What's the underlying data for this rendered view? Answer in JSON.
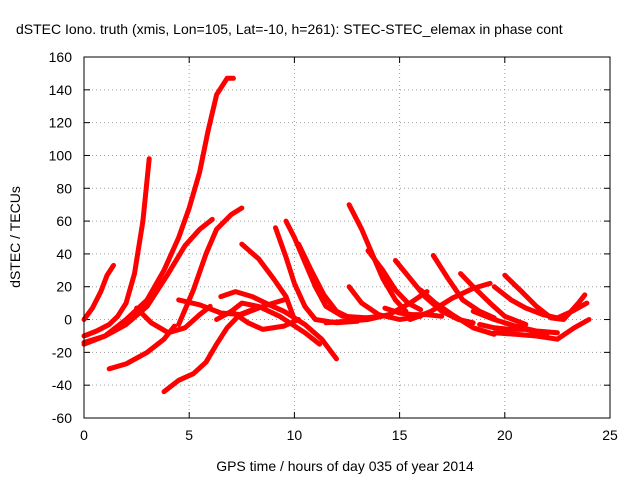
{
  "chart_data": {
    "type": "line",
    "title": "dSTEC Iono. truth (xmis, Lon=105, Lat=-10, h=261): STEC-STEC_elemax in phase cont",
    "xlabel": "GPS time / hours of day 035 of year 2014",
    "ylabel": "dSTEC  / TECUs",
    "xlim": [
      0,
      25
    ],
    "ylim": [
      -60,
      160
    ],
    "xticks": [
      0,
      5,
      10,
      15,
      20,
      25
    ],
    "yticks": [
      -60,
      -40,
      -20,
      0,
      20,
      40,
      60,
      80,
      100,
      120,
      140,
      160
    ],
    "grid": true,
    "color": "#ff0000",
    "series": [
      {
        "points": [
          [
            0,
            0
          ],
          [
            0.4,
            7
          ],
          [
            0.8,
            17
          ],
          [
            1.1,
            27
          ],
          [
            1.4,
            33
          ]
        ]
      },
      {
        "points": [
          [
            0,
            -10
          ],
          [
            0.6,
            -7
          ],
          [
            1.2,
            -3
          ],
          [
            1.6,
            2
          ],
          [
            2,
            10
          ],
          [
            2.4,
            28
          ],
          [
            2.8,
            60
          ],
          [
            3.1,
            98
          ]
        ]
      },
      {
        "points": [
          [
            0,
            -15
          ],
          [
            1,
            -10
          ],
          [
            2,
            0
          ],
          [
            3,
            12
          ],
          [
            3.8,
            30
          ],
          [
            4.5,
            50
          ],
          [
            5,
            68
          ],
          [
            5.5,
            90
          ],
          [
            5.9,
            115
          ],
          [
            6.3,
            137
          ],
          [
            6.8,
            147
          ],
          [
            7.1,
            147
          ]
        ]
      },
      {
        "points": [
          [
            0,
            -14
          ],
          [
            1,
            -10
          ],
          [
            2,
            -3
          ],
          [
            3,
            8
          ],
          [
            4,
            28
          ],
          [
            4.8,
            45
          ],
          [
            5.5,
            55
          ],
          [
            6.1,
            61
          ]
        ]
      },
      {
        "points": [
          [
            1.2,
            -30
          ],
          [
            2,
            -27
          ],
          [
            3,
            -20
          ],
          [
            3.8,
            -12
          ],
          [
            4.3,
            -4
          ]
        ]
      },
      {
        "points": [
          [
            2.5,
            7
          ],
          [
            3.2,
            -2
          ],
          [
            4,
            -8
          ],
          [
            4.8,
            -5
          ],
          [
            5.5,
            3
          ],
          [
            6,
            8
          ]
        ]
      },
      {
        "points": [
          [
            4.5,
            -3
          ],
          [
            5.2,
            18
          ],
          [
            5.8,
            40
          ],
          [
            6.3,
            55
          ],
          [
            7,
            64
          ],
          [
            7.5,
            68
          ]
        ]
      },
      {
        "points": [
          [
            3.8,
            -44
          ],
          [
            4.5,
            -37
          ],
          [
            5.2,
            -33
          ],
          [
            5.8,
            -26
          ],
          [
            6.3,
            -15
          ],
          [
            6.8,
            -5
          ],
          [
            7.4,
            3
          ],
          [
            8,
            6
          ]
        ]
      },
      {
        "points": [
          [
            4.5,
            12
          ],
          [
            5.5,
            9
          ],
          [
            6.5,
            4
          ],
          [
            7.5,
            3
          ],
          [
            8.5,
            8
          ],
          [
            9.5,
            12
          ]
        ]
      },
      {
        "points": [
          [
            6.3,
            0
          ],
          [
            7,
            5
          ],
          [
            7.5,
            10
          ],
          [
            8.3,
            8
          ],
          [
            9.3,
            2
          ],
          [
            10.5,
            -8
          ],
          [
            11.2,
            -15
          ]
        ]
      },
      {
        "points": [
          [
            6.5,
            14
          ],
          [
            7.2,
            17
          ],
          [
            8,
            14
          ],
          [
            8.8,
            9
          ],
          [
            9.5,
            5
          ],
          [
            10.5,
            -3
          ],
          [
            11.3,
            -12
          ],
          [
            12,
            -24
          ]
        ]
      },
      {
        "points": [
          [
            7.5,
            46
          ],
          [
            8.3,
            37
          ],
          [
            9,
            25
          ],
          [
            9.6,
            14
          ],
          [
            10,
            0
          ]
        ]
      },
      {
        "points": [
          [
            7,
            5
          ],
          [
            7.8,
            -2
          ],
          [
            8.5,
            -6
          ],
          [
            9.5,
            -4
          ],
          [
            10.2,
            0
          ]
        ]
      },
      {
        "points": [
          [
            9.1,
            56
          ],
          [
            9.6,
            38
          ],
          [
            10,
            22
          ],
          [
            10.5,
            8
          ],
          [
            11,
            0
          ],
          [
            12,
            -2
          ],
          [
            13,
            -1
          ]
        ]
      },
      {
        "points": [
          [
            9.6,
            60
          ],
          [
            10,
            50
          ],
          [
            10.5,
            35
          ],
          [
            11,
            20
          ],
          [
            11.5,
            8
          ],
          [
            12.3,
            2
          ],
          [
            13.5,
            1
          ]
        ]
      },
      {
        "points": [
          [
            10.2,
            46
          ],
          [
            10.8,
            30
          ],
          [
            11.4,
            15
          ],
          [
            12,
            5
          ],
          [
            12.8,
            0
          ],
          [
            14,
            2
          ]
        ]
      },
      {
        "points": [
          [
            12.6,
            70
          ],
          [
            13.2,
            55
          ],
          [
            13.7,
            40
          ],
          [
            14.2,
            25
          ],
          [
            14.8,
            12
          ],
          [
            15.3,
            5
          ]
        ]
      },
      {
        "points": [
          [
            12.6,
            20
          ],
          [
            13.2,
            10
          ],
          [
            14,
            3
          ],
          [
            15,
            0
          ],
          [
            16,
            2
          ]
        ]
      },
      {
        "points": [
          [
            13.5,
            42
          ],
          [
            14.2,
            30
          ],
          [
            14.8,
            18
          ],
          [
            15.4,
            10
          ],
          [
            16,
            6
          ]
        ]
      },
      {
        "points": [
          [
            11.5,
            -2
          ],
          [
            12.5,
            -1
          ],
          [
            13.5,
            0
          ],
          [
            14.5,
            3
          ],
          [
            15.5,
            10
          ],
          [
            16.3,
            17
          ]
        ]
      },
      {
        "points": [
          [
            14.3,
            7
          ],
          [
            15,
            4
          ],
          [
            15.6,
            3
          ],
          [
            16.3,
            3
          ],
          [
            17,
            2
          ]
        ]
      },
      {
        "points": [
          [
            14.8,
            36
          ],
          [
            15.5,
            25
          ],
          [
            16.2,
            14
          ],
          [
            17,
            5
          ],
          [
            17.8,
            0
          ],
          [
            18.5,
            -2
          ]
        ]
      },
      {
        "points": [
          [
            16.6,
            39
          ],
          [
            17.3,
            25
          ],
          [
            18,
            12
          ],
          [
            18.8,
            5
          ],
          [
            19.5,
            1
          ]
        ]
      },
      {
        "points": [
          [
            16,
            18
          ],
          [
            16.7,
            10
          ],
          [
            17.5,
            3
          ],
          [
            18.5,
            -5
          ],
          [
            19.5,
            -9
          ]
        ]
      },
      {
        "points": [
          [
            15.5,
            0
          ],
          [
            16.5,
            5
          ],
          [
            17.5,
            13
          ],
          [
            18.5,
            19
          ],
          [
            19.3,
            22
          ]
        ]
      },
      {
        "points": [
          [
            17.9,
            28
          ],
          [
            18.5,
            20
          ],
          [
            19.3,
            10
          ],
          [
            20,
            2
          ],
          [
            21,
            -3
          ]
        ]
      },
      {
        "points": [
          [
            18.5,
            5
          ],
          [
            19.5,
            0
          ],
          [
            20.5,
            -4
          ],
          [
            21.5,
            -7
          ],
          [
            22.5,
            -8
          ]
        ]
      },
      {
        "points": [
          [
            19.5,
            20
          ],
          [
            20.3,
            12
          ],
          [
            21,
            7
          ],
          [
            21.8,
            3
          ],
          [
            22.5,
            1
          ],
          [
            23.2,
            5
          ],
          [
            23.9,
            10
          ]
        ]
      },
      {
        "points": [
          [
            20,
            27
          ],
          [
            20.8,
            17
          ],
          [
            21.5,
            8
          ],
          [
            22.2,
            1
          ],
          [
            22.8,
            0
          ],
          [
            23.5,
            10
          ],
          [
            23.8,
            15
          ]
        ]
      },
      {
        "points": [
          [
            19.5,
            -8
          ],
          [
            20.5,
            -9
          ],
          [
            21.5,
            -10
          ],
          [
            22.5,
            -12
          ],
          [
            23.3,
            -5
          ],
          [
            24,
            0
          ]
        ]
      },
      {
        "points": [
          [
            18.8,
            -3
          ],
          [
            19.5,
            -5
          ],
          [
            20.3,
            -6
          ],
          [
            21,
            -6
          ],
          [
            22,
            -9
          ]
        ]
      }
    ]
  }
}
